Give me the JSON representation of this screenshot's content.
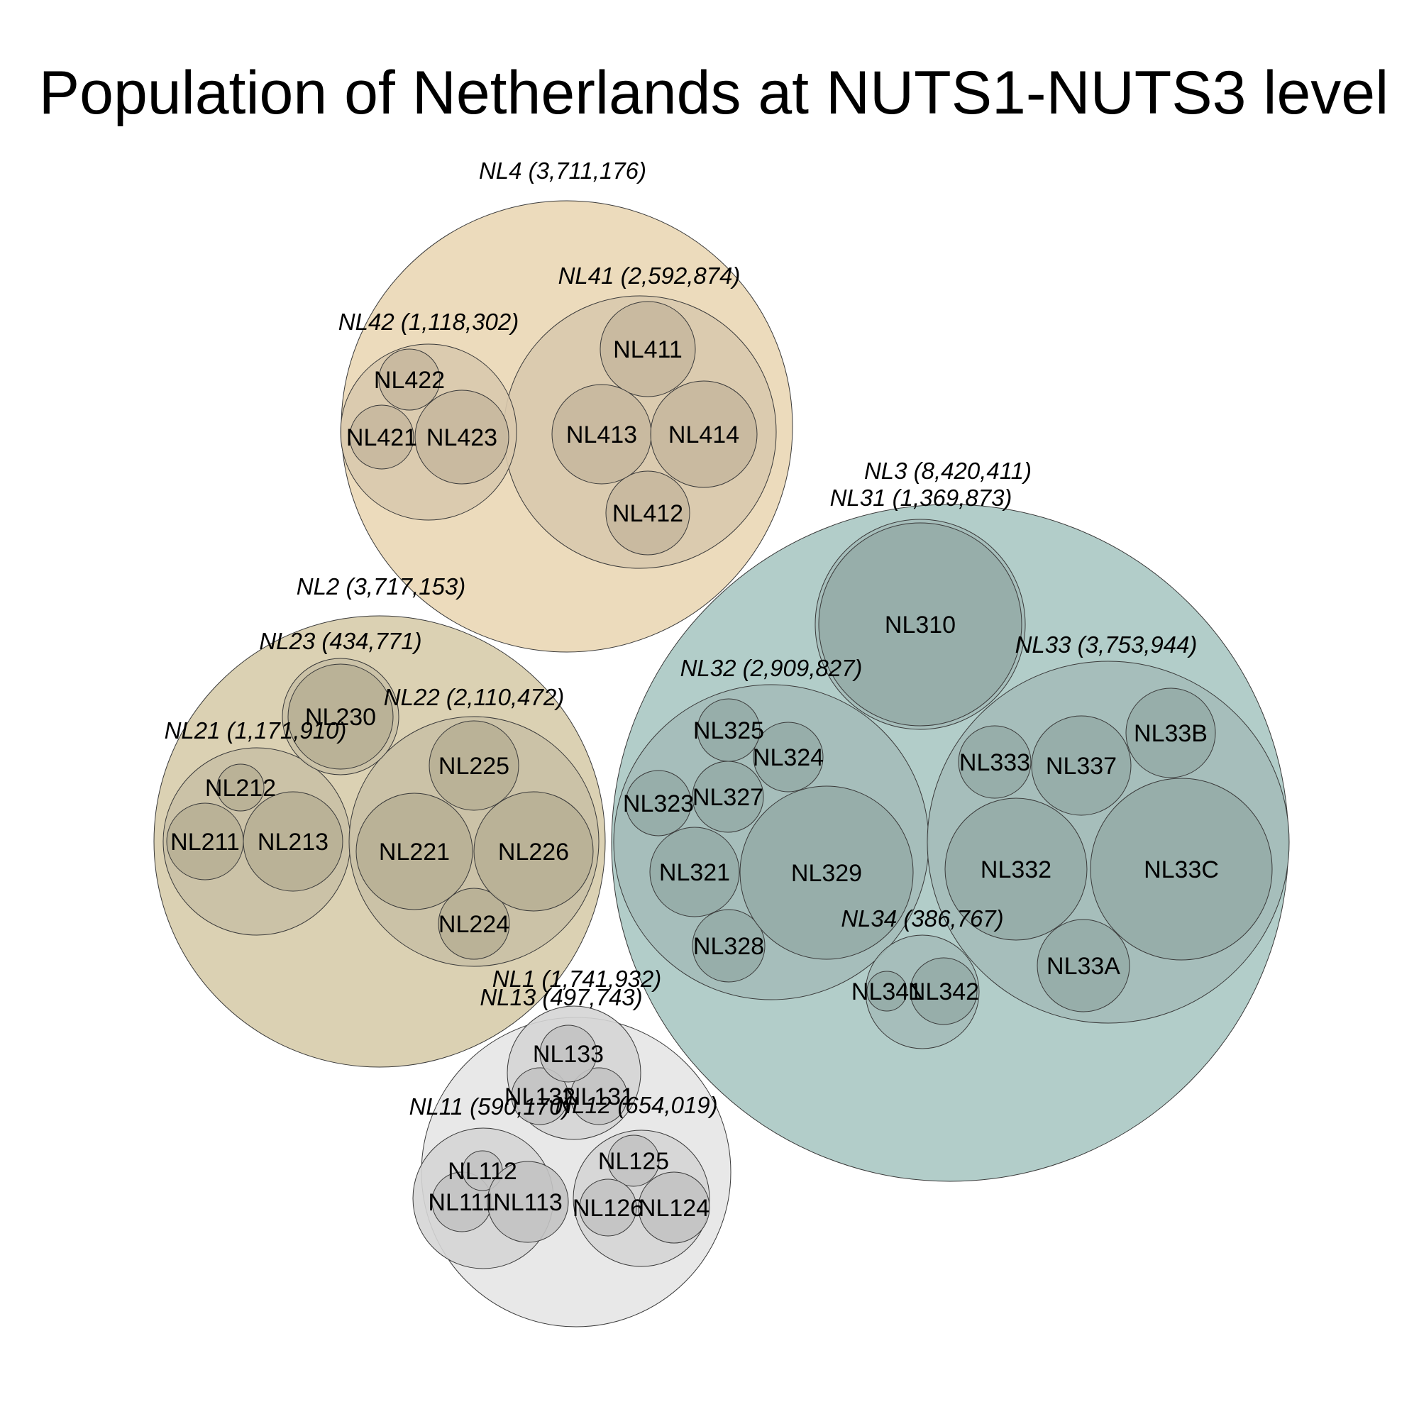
{
  "chart_data": {
    "type": "circle-packing",
    "title": "Population of Netherlands at NUTS1-NUTS3 level",
    "colors": {
      "NL1": "#e8e8e8",
      "NL2": "#dbd1b3",
      "NL3": "#b2cdc9",
      "NL4": "#ecdbbc"
    },
    "regions": [
      {
        "code": "NL1",
        "level": 1,
        "label": "NL1 (1,741,932)",
        "value": 1741932
      },
      {
        "code": "NL11",
        "level": 2,
        "parent": "NL1",
        "label": "NL11 (590,170)",
        "value": 590170
      },
      {
        "code": "NL12",
        "level": 2,
        "parent": "NL1",
        "label": "NL12 (654,019)",
        "value": 654019
      },
      {
        "code": "NL13",
        "level": 2,
        "parent": "NL1",
        "label": "NL13 (497,743)",
        "value": 497743
      },
      {
        "code": "NL111",
        "level": 3,
        "parent": "NL11",
        "label": "NL111"
      },
      {
        "code": "NL112",
        "level": 3,
        "parent": "NL11",
        "label": "NL112"
      },
      {
        "code": "NL113",
        "level": 3,
        "parent": "NL11",
        "label": "NL113"
      },
      {
        "code": "NL124",
        "level": 3,
        "parent": "NL12",
        "label": "NL124"
      },
      {
        "code": "NL125",
        "level": 3,
        "parent": "NL12",
        "label": "NL125"
      },
      {
        "code": "NL126",
        "level": 3,
        "parent": "NL12",
        "label": "NL126"
      },
      {
        "code": "NL131",
        "level": 3,
        "parent": "NL13",
        "label": "NL131"
      },
      {
        "code": "NL132",
        "level": 3,
        "parent": "NL13",
        "label": "NL132"
      },
      {
        "code": "NL133",
        "level": 3,
        "parent": "NL13",
        "label": "NL133"
      },
      {
        "code": "NL2",
        "level": 1,
        "label": "NL2 (3,717,153)",
        "value": 3717153
      },
      {
        "code": "NL21",
        "level": 2,
        "parent": "NL2",
        "label": "NL21 (1,171,910)",
        "value": 1171910
      },
      {
        "code": "NL22",
        "level": 2,
        "parent": "NL2",
        "label": "NL22 (2,110,472)",
        "value": 2110472
      },
      {
        "code": "NL23",
        "level": 2,
        "parent": "NL2",
        "label": "NL23 (434,771)",
        "value": 434771
      },
      {
        "code": "NL211",
        "level": 3,
        "parent": "NL21",
        "label": "NL211"
      },
      {
        "code": "NL212",
        "level": 3,
        "parent": "NL21",
        "label": "NL212"
      },
      {
        "code": "NL213",
        "level": 3,
        "parent": "NL21",
        "label": "NL213"
      },
      {
        "code": "NL221",
        "level": 3,
        "parent": "NL22",
        "label": "NL221"
      },
      {
        "code": "NL224",
        "level": 3,
        "parent": "NL22",
        "label": "NL224"
      },
      {
        "code": "NL225",
        "level": 3,
        "parent": "NL22",
        "label": "NL225"
      },
      {
        "code": "NL226",
        "level": 3,
        "parent": "NL22",
        "label": "NL226"
      },
      {
        "code": "NL230",
        "level": 3,
        "parent": "NL23",
        "label": "NL230"
      },
      {
        "code": "NL3",
        "level": 1,
        "label": "NL3 (8,420,411)",
        "value": 8420411
      },
      {
        "code": "NL31",
        "level": 2,
        "parent": "NL3",
        "label": "NL31 (1,369,873)",
        "value": 1369873
      },
      {
        "code": "NL32",
        "level": 2,
        "parent": "NL3",
        "label": "NL32 (2,909,827)",
        "value": 2909827
      },
      {
        "code": "NL33",
        "level": 2,
        "parent": "NL3",
        "label": "NL33 (3,753,944)",
        "value": 3753944
      },
      {
        "code": "NL34",
        "level": 2,
        "parent": "NL3",
        "label": "NL34 (386,767)",
        "value": 386767
      },
      {
        "code": "NL310",
        "level": 3,
        "parent": "NL31",
        "label": "NL310"
      },
      {
        "code": "NL321",
        "level": 3,
        "parent": "NL32",
        "label": "NL321"
      },
      {
        "code": "NL323",
        "level": 3,
        "parent": "NL32",
        "label": "NL323"
      },
      {
        "code": "NL324",
        "level": 3,
        "parent": "NL32",
        "label": "NL324"
      },
      {
        "code": "NL325",
        "level": 3,
        "parent": "NL32",
        "label": "NL325"
      },
      {
        "code": "NL327",
        "level": 3,
        "parent": "NL32",
        "label": "NL327"
      },
      {
        "code": "NL328",
        "level": 3,
        "parent": "NL32",
        "label": "NL328"
      },
      {
        "code": "NL329",
        "level": 3,
        "parent": "NL32",
        "label": "NL329"
      },
      {
        "code": "NL332",
        "level": 3,
        "parent": "NL33",
        "label": "NL332"
      },
      {
        "code": "NL333",
        "level": 3,
        "parent": "NL33",
        "label": "NL333"
      },
      {
        "code": "NL337",
        "level": 3,
        "parent": "NL33",
        "label": "NL337"
      },
      {
        "code": "NL33A",
        "level": 3,
        "parent": "NL33",
        "label": "NL33A"
      },
      {
        "code": "NL33B",
        "level": 3,
        "parent": "NL33",
        "label": "NL33B"
      },
      {
        "code": "NL33C",
        "level": 3,
        "parent": "NL33",
        "label": "NL33C"
      },
      {
        "code": "NL341",
        "level": 3,
        "parent": "NL34",
        "label": "NL341"
      },
      {
        "code": "NL342",
        "level": 3,
        "parent": "NL34",
        "label": "NL342"
      },
      {
        "code": "NL4",
        "level": 1,
        "label": "NL4 (3,711,176)",
        "value": 3711176
      },
      {
        "code": "NL41",
        "level": 2,
        "parent": "NL4",
        "label": "NL41 (2,592,874)",
        "value": 2592874
      },
      {
        "code": "NL42",
        "level": 2,
        "parent": "NL4",
        "label": "NL42 (1,118,302)",
        "value": 1118302
      },
      {
        "code": "NL411",
        "level": 3,
        "parent": "NL41",
        "label": "NL411"
      },
      {
        "code": "NL412",
        "level": 3,
        "parent": "NL41",
        "label": "NL412"
      },
      {
        "code": "NL413",
        "level": 3,
        "parent": "NL41",
        "label": "NL413"
      },
      {
        "code": "NL414",
        "level": 3,
        "parent": "NL41",
        "label": "NL414"
      },
      {
        "code": "NL421",
        "level": 3,
        "parent": "NL42",
        "label": "NL421"
      },
      {
        "code": "NL422",
        "level": 3,
        "parent": "NL42",
        "label": "NL422"
      },
      {
        "code": "NL423",
        "level": 3,
        "parent": "NL42",
        "label": "NL423"
      }
    ]
  }
}
